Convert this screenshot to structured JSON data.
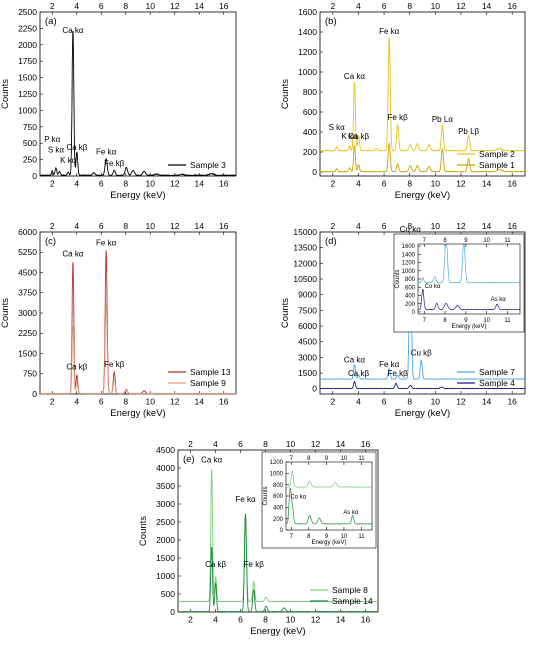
{
  "chart_data": [
    {
      "panel": "(a)",
      "type": "line",
      "xlabel": "Energy (keV)",
      "ylabel": "Counts",
      "xlim": [
        1,
        17
      ],
      "ylim": [
        0,
        2500
      ],
      "xticks": [
        2,
        4,
        6,
        8,
        10,
        12,
        14,
        16
      ],
      "yticks": [
        0,
        250,
        500,
        750,
        1000,
        1250,
        1500,
        1750,
        2000,
        2250,
        2500
      ],
      "legend_position": "right",
      "series": [
        {
          "name": "Sample 3",
          "color": "#000000",
          "baseline": 0,
          "noise": 15,
          "peaks": [
            [
              2.0,
              70,
              0.06
            ],
            [
              2.3,
              110,
              0.07
            ],
            [
              2.6,
              60,
              0.07
            ],
            [
              3.3,
              50,
              0.07
            ],
            [
              3.7,
              70,
              0.07
            ],
            [
              3.69,
              2150,
              0.07
            ],
            [
              4.01,
              360,
              0.07
            ],
            [
              5.4,
              40,
              0.1
            ],
            [
              6.4,
              250,
              0.09
            ],
            [
              7.06,
              80,
              0.08
            ],
            [
              8.05,
              120,
              0.1
            ],
            [
              8.6,
              70,
              0.12
            ],
            [
              9.5,
              60,
              0.12
            ],
            [
              10.5,
              20,
              0.15
            ],
            [
              12.6,
              15,
              0.15
            ],
            [
              15.0,
              25,
              0.2
            ]
          ]
        }
      ],
      "annotations": [
        {
          "text": "Ca kα",
          "x": 3.69,
          "y": 2180
        },
        {
          "text": "P kα",
          "x": 2.0,
          "y": 520
        },
        {
          "text": "S kα",
          "x": 2.3,
          "y": 360
        },
        {
          "text": "K kα",
          "x": 3.3,
          "y": 200
        },
        {
          "text": "Ca kβ",
          "x": 4.01,
          "y": 400
        },
        {
          "text": "Fe kα",
          "x": 6.4,
          "y": 330
        },
        {
          "text": "Fe kβ",
          "x": 7.06,
          "y": 150
        }
      ]
    },
    {
      "panel": "(b)",
      "type": "line",
      "xlabel": "Energy (keV)",
      "ylabel": "Counts",
      "xlim": [
        1,
        17
      ],
      "ylim": [
        -40,
        1600
      ],
      "xticks": [
        2,
        4,
        6,
        8,
        10,
        12,
        14,
        16
      ],
      "yticks": [
        0,
        200,
        400,
        600,
        800,
        1000,
        1200,
        1400,
        1600
      ],
      "legend_position": "right",
      "series": [
        {
          "name": "Sample 2",
          "color": "#e6c11a",
          "baseline": 210,
          "noise": 5,
          "peaks": [
            [
              2.3,
              40,
              0.06
            ],
            [
              3.3,
              50,
              0.07
            ],
            [
              3.69,
              680,
              0.07
            ],
            [
              4.01,
              150,
              0.07
            ],
            [
              5.4,
              20,
              0.1
            ],
            [
              6.4,
              1130,
              0.08
            ],
            [
              7.06,
              260,
              0.08
            ],
            [
              8.05,
              60,
              0.1
            ],
            [
              8.6,
              70,
              0.1
            ],
            [
              9.5,
              60,
              0.1
            ],
            [
              10.55,
              250,
              0.08
            ],
            [
              12.6,
              150,
              0.09
            ],
            [
              15.0,
              20,
              0.2
            ]
          ]
        },
        {
          "name": "Sample 1",
          "color": "#c8a400",
          "baseline": 0,
          "noise": 5,
          "peaks": [
            [
              2.3,
              30,
              0.06
            ],
            [
              3.3,
              40,
              0.07
            ],
            [
              3.69,
              260,
              0.07
            ],
            [
              4.01,
              70,
              0.07
            ],
            [
              6.4,
              280,
              0.08
            ],
            [
              7.06,
              80,
              0.08
            ],
            [
              8.05,
              60,
              0.1
            ],
            [
              8.6,
              60,
              0.1
            ],
            [
              9.5,
              50,
              0.1
            ],
            [
              10.55,
              230,
              0.08
            ],
            [
              12.6,
              130,
              0.09
            ],
            [
              15.0,
              20,
              0.2
            ]
          ]
        }
      ],
      "annotations": [
        {
          "text": "Fe kα",
          "x": 6.4,
          "y": 1380
        },
        {
          "text": "Ca kα",
          "x": 3.69,
          "y": 930
        },
        {
          "text": "Fe kβ",
          "x": 7.06,
          "y": 520
        },
        {
          "text": "Pb Lα",
          "x": 10.55,
          "y": 500
        },
        {
          "text": "Pb Lβ",
          "x": 12.6,
          "y": 380
        },
        {
          "text": "S kα",
          "x": 2.3,
          "y": 420
        },
        {
          "text": "K kα",
          "x": 3.3,
          "y": 330
        },
        {
          "text": "Ca kβ",
          "x": 4.01,
          "y": 330
        }
      ]
    },
    {
      "panel": "(c)",
      "type": "line",
      "xlabel": "Energy (keV)",
      "ylabel": "Counts",
      "xlim": [
        1,
        17
      ],
      "ylim": [
        0,
        6000
      ],
      "xticks": [
        2,
        4,
        6,
        8,
        10,
        12,
        14,
        16
      ],
      "yticks": [
        0,
        750,
        1500,
        2250,
        3000,
        3750,
        4500,
        5250,
        6000
      ],
      "legend_position": "right",
      "series": [
        {
          "name": "Sample 13",
          "color": "#b8322a",
          "baseline": 0,
          "noise": 20,
          "peaks": [
            [
              3.69,
              4900,
              0.07
            ],
            [
              4.01,
              700,
              0.07
            ],
            [
              6.4,
              5300,
              0.08
            ],
            [
              7.06,
              800,
              0.08
            ],
            [
              8.05,
              150,
              0.1
            ],
            [
              9.5,
              100,
              0.12
            ]
          ]
        },
        {
          "name": "Sample 9",
          "color": "#e0a080",
          "baseline": 0,
          "noise": 20,
          "peaks": [
            [
              3.69,
              2500,
              0.07
            ],
            [
              4.01,
              400,
              0.07
            ],
            [
              6.4,
              3300,
              0.08
            ],
            [
              7.06,
              500,
              0.08
            ],
            [
              8.05,
              120,
              0.1
            ]
          ]
        }
      ],
      "annotations": [
        {
          "text": "Ca kα",
          "x": 3.69,
          "y": 5100
        },
        {
          "text": "Fe kα",
          "x": 6.4,
          "y": 5500
        },
        {
          "text": "Ca kβ",
          "x": 4.01,
          "y": 900
        },
        {
          "text": "Fe kβ",
          "x": 7.06,
          "y": 1000
        }
      ]
    },
    {
      "panel": "(d)",
      "type": "line",
      "xlabel": "Energy (keV)",
      "ylabel": "Counts",
      "xlim": [
        1,
        17
      ],
      "ylim": [
        -500,
        15000
      ],
      "xticks": [
        2,
        4,
        6,
        8,
        10,
        12,
        14,
        16
      ],
      "yticks": [
        0,
        1500,
        3000,
        4500,
        6000,
        7500,
        9000,
        10500,
        12000,
        13500,
        15000
      ],
      "legend_position": "right",
      "series": [
        {
          "name": "Sample 7",
          "color": "#4fa8e0",
          "baseline": 900,
          "noise": 40,
          "peaks": [
            [
              3.69,
              1400,
              0.07
            ],
            [
              4.01,
              400,
              0.07
            ],
            [
              6.4,
              1000,
              0.08
            ],
            [
              7.06,
              400,
              0.08
            ],
            [
              8.05,
              13800,
              0.08
            ],
            [
              8.9,
              1800,
              0.08
            ]
          ]
        },
        {
          "name": "Sample 4",
          "color": "#1a1a8c",
          "baseline": 0,
          "noise": 30,
          "peaks": [
            [
              3.69,
              700,
              0.07
            ],
            [
              6.93,
              500,
              0.08
            ],
            [
              8.05,
              300,
              0.1
            ],
            [
              10.5,
              150,
              0.1
            ]
          ]
        }
      ],
      "annotations": [
        {
          "text": "Cu kα",
          "x": 8.05,
          "y": 15000
        },
        {
          "text": "Ca kα",
          "x": 3.69,
          "y": 2500
        },
        {
          "text": "Ca kβ",
          "x": 4.01,
          "y": 1200
        },
        {
          "text": "Fe kα",
          "x": 6.4,
          "y": 2100
        },
        {
          "text": "Fe kβ",
          "x": 7.06,
          "y": 1200
        },
        {
          "text": "Cu kβ",
          "x": 8.9,
          "y": 3200
        }
      ],
      "inset": {
        "xlim": [
          6.7,
          11.6
        ],
        "ylim": [
          -50,
          1650
        ],
        "xticks": [
          7,
          8,
          9,
          10,
          11
        ],
        "yticks": [
          0,
          200,
          400,
          600,
          800,
          1000,
          1200,
          1400,
          1600
        ],
        "xlabel": "Energy (keV)",
        "ylabel": "Counts",
        "series": [
          {
            "color": "#4fa8e0",
            "baseline": 700,
            "noise": 15,
            "peaks": [
              [
                6.93,
                120,
                0.05
              ],
              [
                7.5,
                150,
                0.06
              ],
              [
                8.05,
                1200,
                0.06
              ],
              [
                8.9,
                1000,
                0.06
              ]
            ]
          },
          {
            "color": "#1a1a8c",
            "baseline": 50,
            "noise": 10,
            "peaks": [
              [
                6.93,
                500,
                0.05
              ],
              [
                7.6,
                150,
                0.06
              ],
              [
                8.05,
                150,
                0.08
              ],
              [
                8.6,
                100,
                0.08
              ],
              [
                10.5,
                130,
                0.06
              ]
            ]
          }
        ],
        "annotations": [
          {
            "text": "Co kα",
            "x": 7.4,
            "y": 580
          },
          {
            "text": "As kα",
            "x": 10.55,
            "y": 270
          }
        ]
      }
    },
    {
      "panel": "(e)",
      "type": "line",
      "xlabel": "Energy (keV)",
      "ylabel": "Counts",
      "xlim": [
        1,
        17
      ],
      "ylim": [
        0,
        4500
      ],
      "xticks": [
        2,
        4,
        6,
        8,
        10,
        12,
        14,
        16
      ],
      "yticks": [
        0,
        500,
        1000,
        1500,
        2000,
        2500,
        3000,
        3500,
        4000,
        4500
      ],
      "legend_position": "right",
      "series": [
        {
          "name": "Sample 8",
          "color": "#7acc7a",
          "baseline": 280,
          "noise": 15,
          "peaks": [
            [
              3.69,
              3700,
              0.07
            ],
            [
              4.01,
              700,
              0.07
            ],
            [
              6.4,
              2450,
              0.08
            ],
            [
              7.06,
              550,
              0.08
            ],
            [
              8.05,
              120,
              0.1
            ]
          ]
        },
        {
          "name": "Sample 14",
          "color": "#1e8c3c",
          "baseline": 0,
          "noise": 15,
          "peaks": [
            [
              3.69,
              1800,
              0.07
            ],
            [
              4.01,
              800,
              0.07
            ],
            [
              6.4,
              2700,
              0.08
            ],
            [
              7.06,
              600,
              0.08
            ],
            [
              8.05,
              150,
              0.1
            ],
            [
              9.5,
              100,
              0.12
            ]
          ]
        }
      ],
      "annotations": [
        {
          "text": "Ca kα",
          "x": 3.69,
          "y": 4150
        },
        {
          "text": "Fe kα",
          "x": 6.4,
          "y": 3050
        },
        {
          "text": "Ca kβ",
          "x": 4.01,
          "y": 1250
        },
        {
          "text": "Fe kβ",
          "x": 7.06,
          "y": 1250
        }
      ],
      "inset": {
        "xlim": [
          6.7,
          11.6
        ],
        "ylim": [
          0,
          1200
        ],
        "xticks": [
          7,
          8,
          9,
          10,
          11
        ],
        "yticks": [
          0,
          200,
          400,
          600,
          800,
          1000,
          1200
        ],
        "xlabel": "Energy (keV)",
        "ylabel": "Counts",
        "series": [
          {
            "color": "#7acc7a",
            "baseline": 750,
            "noise": 12,
            "peaks": [
              [
                7.06,
                280,
                0.06
              ],
              [
                8.05,
                100,
                0.08
              ],
              [
                9.5,
                80,
                0.1
              ]
            ]
          },
          {
            "color": "#1e8c3c",
            "baseline": 100,
            "noise": 12,
            "peaks": [
              [
                6.93,
                600,
                0.06
              ],
              [
                7.06,
                300,
                0.06
              ],
              [
                8.05,
                150,
                0.08
              ],
              [
                8.6,
                100,
                0.08
              ],
              [
                10.5,
                150,
                0.06
              ]
            ]
          }
        ],
        "annotations": [
          {
            "text": "Co kα",
            "x": 7.4,
            "y": 560
          },
          {
            "text": "As kα",
            "x": 10.4,
            "y": 280
          }
        ]
      }
    }
  ]
}
